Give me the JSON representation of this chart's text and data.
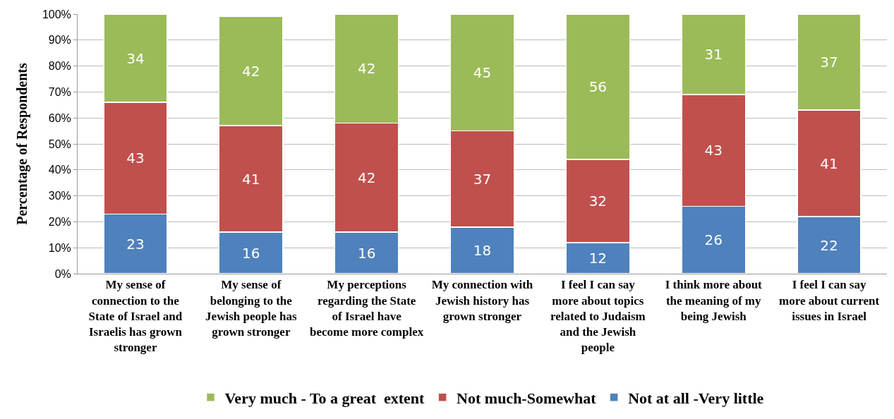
{
  "chart_data": {
    "type": "bar",
    "stacked": true,
    "ylabel": "Percentage of Respondents",
    "categories": [
      "My sense of connection to the State of Israel and Israelis has grown stronger",
      "My sense of belonging to the Jewish people has grown stronger",
      "My perceptions regarding the State of Israel have become more complex",
      "My connection with Jewish history has grown stronger",
      "I feel I can say more about topics related to Judaism and the Jewish people",
      "I think more about the meaning of my being Jewish",
      "I feel I can say more about current issues in Israel"
    ],
    "series": [
      {
        "name": "Not at all -Very little",
        "color": "#4f81bd",
        "values": [
          23,
          16,
          16,
          18,
          12,
          26,
          22
        ]
      },
      {
        "name": "Not much-Somewhat",
        "color": "#c0504d",
        "values": [
          43,
          41,
          42,
          37,
          32,
          43,
          41
        ]
      },
      {
        "name": "Very much - To a great  extent",
        "color": "#9bbb59",
        "values": [
          34,
          42,
          42,
          45,
          56,
          31,
          37
        ]
      }
    ],
    "ylim": [
      0,
      100
    ],
    "yticks": [
      {
        "value": 0,
        "label": "0%"
      },
      {
        "value": 10,
        "label": "10%"
      },
      {
        "value": 20,
        "label": "20%"
      },
      {
        "value": 30,
        "label": "30%"
      },
      {
        "value": 40,
        "label": "40%"
      },
      {
        "value": 50,
        "label": "50%"
      },
      {
        "value": 60,
        "label": "60%"
      },
      {
        "value": 70,
        "label": "70%"
      },
      {
        "value": 80,
        "label": "80%"
      },
      {
        "value": 90,
        "label": "90%"
      },
      {
        "value": 100,
        "label": "100%"
      }
    ],
    "grid": "y",
    "legend": "bottom",
    "data_labels": true
  }
}
